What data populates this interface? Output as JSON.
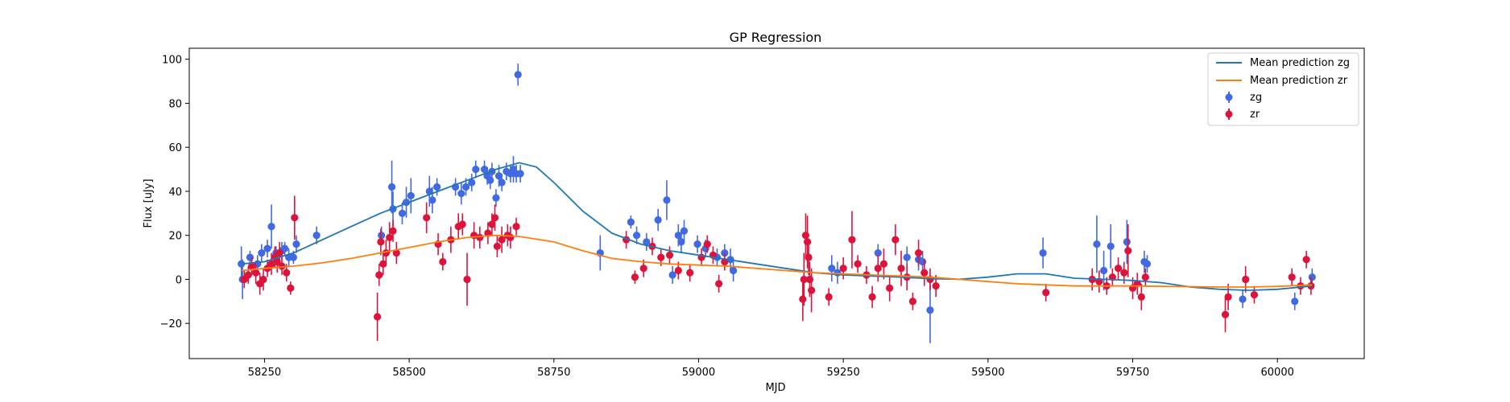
{
  "chart_data": {
    "type": "scatter",
    "title": "GP Regression",
    "xlabel": "MJD",
    "ylabel": "Flux [uJy]",
    "xlim": [
      58120,
      60150
    ],
    "ylim": [
      -36,
      105
    ],
    "xticks": [
      58250,
      58500,
      58750,
      59000,
      59250,
      59500,
      59750,
      60000
    ],
    "yticks": [
      -20,
      0,
      20,
      40,
      60,
      80,
      100
    ],
    "grid": false,
    "legend_position": "top-right",
    "colors": {
      "zg_line": "#1f77b4",
      "zr_line": "#ff7f0e",
      "zg_points": "#4169e1",
      "zr_points": "#dc143c"
    },
    "lines": [
      {
        "name": "Mean prediction zg",
        "x": [
          58210,
          58250,
          58300,
          58350,
          58400,
          58450,
          58500,
          58550,
          58600,
          58650,
          58690,
          58720,
          58750,
          58800,
          58850,
          58900,
          58950,
          59000,
          59050,
          59100,
          59150,
          59200,
          59250,
          59300,
          59350,
          59400,
          59450,
          59500,
          59550,
          59600,
          59650,
          59700,
          59750,
          59800,
          59850,
          59900,
          59950,
          60000,
          60060
        ],
        "y": [
          7,
          8,
          12,
          18,
          24,
          30,
          35,
          40,
          45,
          50,
          53,
          51,
          44,
          31,
          21,
          16,
          13,
          11,
          9,
          7,
          5,
          3,
          2,
          1.5,
          1,
          0.3,
          0,
          1,
          2.5,
          2.5,
          0.5,
          0,
          -0.5,
          -1.5,
          -3.5,
          -4.5,
          -5,
          -4.5,
          -3
        ]
      },
      {
        "name": "Mean prediction zr",
        "x": [
          58210,
          58250,
          58300,
          58350,
          58400,
          58450,
          58500,
          58550,
          58600,
          58650,
          58690,
          58750,
          58800,
          58850,
          58900,
          58950,
          59000,
          59050,
          59100,
          59150,
          59200,
          59250,
          59300,
          59350,
          59400,
          59450,
          59500,
          59550,
          59600,
          59650,
          59700,
          59750,
          59800,
          59850,
          59900,
          59950,
          60000,
          60060
        ],
        "y": [
          4,
          5,
          6,
          7.5,
          9.5,
          12,
          14.5,
          17,
          19,
          20,
          19.5,
          17,
          13,
          9.5,
          8,
          7,
          6.5,
          6,
          5,
          4,
          3,
          2.5,
          2,
          1.5,
          1,
          0,
          -1,
          -2,
          -2.5,
          -3,
          -3,
          -3,
          -3.2,
          -3.3,
          -3.5,
          -3.5,
          -3.2,
          -2.5
        ]
      }
    ],
    "series": [
      {
        "name": "zg",
        "x": [
          58210,
          58212,
          58225,
          58238,
          58245,
          58255,
          58262,
          58270,
          58280,
          58285,
          58292,
          58300,
          58305,
          58340,
          58452,
          58470,
          58472,
          58488,
          58495,
          58503,
          58535,
          58540,
          58548,
          58580,
          58590,
          58598,
          58608,
          58615,
          58630,
          58635,
          58640,
          58643,
          58650,
          58655,
          58660,
          58668,
          58675,
          58680,
          58685,
          58692,
          58688,
          58830,
          58883,
          58893,
          58910,
          58930,
          58945,
          58955,
          58965,
          58970,
          58975,
          58998,
          59012,
          59032,
          59045,
          59055,
          59060,
          59230,
          59240,
          59310,
          59360,
          59380,
          59387,
          59400,
          59595,
          59688,
          59700,
          59712,
          59740,
          59770,
          59775,
          59940,
          60030,
          60060
        ],
        "y": [
          7,
          0,
          10,
          7,
          12,
          14,
          24,
          12,
          13,
          14,
          10,
          10,
          16,
          20,
          20,
          42,
          32,
          30,
          35,
          38,
          40,
          36,
          42,
          42,
          39,
          42,
          44,
          50,
          50,
          47,
          45,
          49,
          37,
          47,
          44,
          49,
          48,
          50,
          48,
          48,
          93,
          12,
          26,
          20,
          17,
          27,
          36,
          2,
          20,
          17,
          22,
          16,
          14,
          10,
          12,
          9,
          4,
          5,
          3,
          12,
          10,
          9,
          8,
          -14,
          12,
          16,
          4,
          15,
          17,
          8,
          7,
          -9,
          -10,
          1
        ],
        "yerr": [
          8,
          9,
          3,
          4,
          4,
          4,
          10,
          3,
          4,
          3,
          4,
          3,
          4,
          4,
          4,
          12,
          8,
          5,
          7,
          8,
          7,
          6,
          4,
          4,
          5,
          4,
          4,
          4,
          4,
          4,
          4,
          4,
          4,
          5,
          4,
          4,
          4,
          6,
          4,
          4,
          5,
          8,
          3,
          4,
          4,
          5,
          9,
          4,
          5,
          5,
          5,
          4,
          4,
          4,
          4,
          5,
          5,
          6,
          5,
          4,
          5,
          5,
          5,
          15,
          7,
          13,
          9,
          10,
          10,
          5,
          4,
          4,
          4,
          4
        ]
      },
      {
        "name": "zr",
        "x": [
          58215,
          58222,
          58228,
          58235,
          58242,
          58248,
          58255,
          58262,
          58268,
          58272,
          58276,
          58280,
          58288,
          58295,
          58302,
          58445,
          58448,
          58451,
          58455,
          58460,
          58466,
          58472,
          58478,
          58530,
          58550,
          58558,
          58572,
          58585,
          58592,
          58600,
          58612,
          58622,
          58636,
          58643,
          58648,
          58652,
          58660,
          58670,
          58675,
          58685,
          58875,
          58890,
          58905,
          58920,
          58935,
          58950,
          58965,
          58985,
          59005,
          59015,
          59025,
          59035,
          59045,
          59180,
          59182,
          59185,
          59188,
          59190,
          59192,
          59195,
          59225,
          59250,
          59265,
          59275,
          59290,
          59300,
          59310,
          59320,
          59330,
          59340,
          59350,
          59360,
          59370,
          59380,
          59390,
          59400,
          59410,
          59600,
          59680,
          59692,
          59705,
          59715,
          59725,
          59735,
          59742,
          59750,
          59758,
          59765,
          59772,
          59910,
          59915,
          59945,
          59960,
          60025,
          60040,
          60050,
          60058
        ],
        "y": [
          0,
          2,
          6,
          3,
          -2,
          0,
          5,
          7,
          10,
          8,
          12,
          6,
          3,
          -4,
          28,
          -17,
          2,
          17,
          7,
          12,
          19,
          22,
          12,
          28,
          16,
          8,
          18,
          24,
          25,
          0,
          20,
          19,
          21,
          25,
          28,
          15,
          18,
          20,
          19,
          24,
          18,
          1,
          5,
          15,
          10,
          11,
          4,
          3,
          10,
          16,
          11,
          -2,
          8,
          -9,
          0,
          20,
          17,
          10,
          0,
          -5,
          -8,
          5,
          18,
          7,
          2,
          -8,
          5,
          7,
          -4,
          18,
          5,
          1,
          -10,
          12,
          3,
          0,
          -3,
          -6,
          0,
          -1,
          -3,
          1,
          5,
          3,
          13,
          -4,
          -2,
          -8,
          1,
          -16,
          -8,
          0,
          -7,
          1,
          -3,
          9,
          -3
        ],
        "yerr": [
          4,
          4,
          4,
          5,
          5,
          5,
          4,
          5,
          5,
          5,
          5,
          4,
          4,
          3,
          10,
          11,
          5,
          6,
          5,
          6,
          7,
          5,
          5,
          7,
          5,
          4,
          6,
          6,
          5,
          12,
          6,
          5,
          5,
          5,
          6,
          5,
          6,
          5,
          5,
          4,
          4,
          3,
          4,
          4,
          4,
          4,
          4,
          4,
          4,
          4,
          4,
          4,
          4,
          10,
          12,
          10,
          12,
          8,
          8,
          10,
          4,
          5,
          13,
          4,
          4,
          5,
          6,
          7,
          6,
          7,
          8,
          6,
          4,
          6,
          6,
          5,
          5,
          4,
          5,
          5,
          4,
          4,
          5,
          5,
          12,
          5,
          5,
          6,
          4,
          8,
          6,
          6,
          4,
          4,
          4,
          4,
          4
        ]
      }
    ]
  }
}
